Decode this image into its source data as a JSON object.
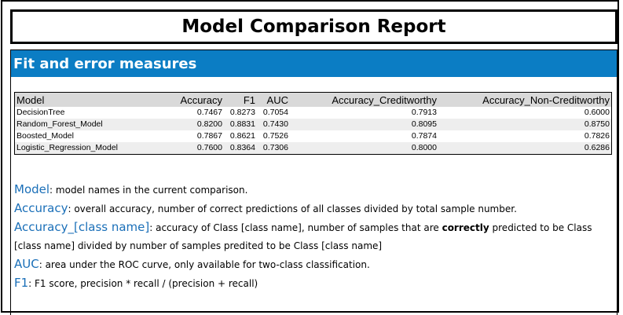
{
  "report": {
    "title": "Model Comparison Report",
    "section_title": "Fit and error measures"
  },
  "table": {
    "headers": [
      "Model",
      "Accuracy",
      "F1",
      "AUC",
      "Accuracy_Creditworthy",
      "Accuracy_Non-Creditworthy"
    ],
    "rows": [
      [
        "DecisionTree",
        "0.7467",
        "0.8273",
        "0.7054",
        "0.7913",
        "0.6000"
      ],
      [
        "Random_Forest_Model",
        "0.8200",
        "0.8831",
        "0.7430",
        "0.8095",
        "0.8750"
      ],
      [
        "Boosted_Model",
        "0.7867",
        "0.8621",
        "0.7526",
        "0.7874",
        "0.7826"
      ],
      [
        "Logistic_Regression_Model",
        "0.7600",
        "0.8364",
        "0.7306",
        "0.8000",
        "0.6286"
      ]
    ]
  },
  "legend": {
    "model": {
      "term": "Model",
      "sep": ": ",
      "desc": "model names in the current comparison."
    },
    "accuracy": {
      "term": "Accuracy",
      "sep": ": ",
      "desc": "overall accuracy, number of correct predictions of all classes divided by total sample number."
    },
    "accuracy_class": {
      "term": "Accuracy_[class name]",
      "sep": ": ",
      "desc_a": "accuracy of Class [class name], number of samples that are ",
      "desc_bold": "correctly",
      "desc_b": " predicted to be Class [class name] divided by number of samples predited to be Class [class name]"
    },
    "auc": {
      "term": "AUC",
      "sep": ": ",
      "desc": "area under the ROC curve, only available for two-class classification."
    },
    "f1": {
      "term": "F1",
      "sep": ": ",
      "desc": "F1 score, precision * recall / (precision + recall)"
    }
  },
  "colors": {
    "section_header_bg": "#0b7dc4",
    "term_text": "#1a6fb8",
    "table_header_bg": "#d9d9d9",
    "table_alt_row_bg": "#eeeeee"
  }
}
